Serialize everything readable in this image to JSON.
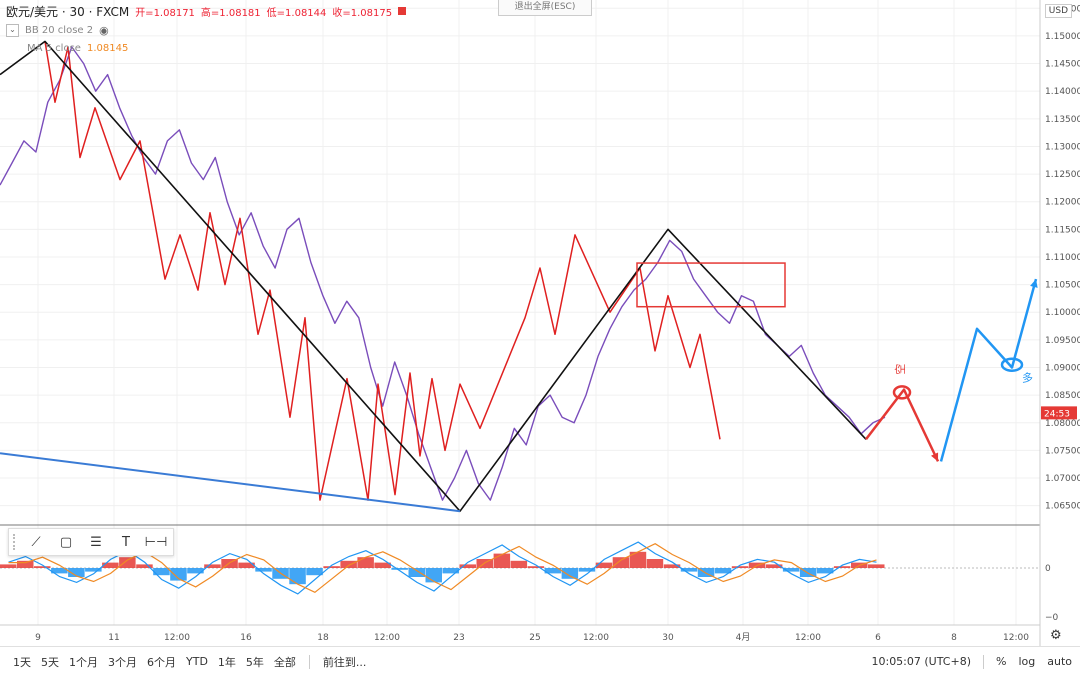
{
  "header": {
    "symbol": "欧元/美元 · 30 · FXCM",
    "open": "开=1.08171",
    "high": "高=1.08181",
    "low": "低=1.08144",
    "close": "收=1.08175",
    "indicator1": "BB 20 close 2",
    "indicator2": "MA 5 close",
    "indicator2_value": "1.08145",
    "exit_fullscreen": "退出全屏(ESC)",
    "currency": "USD"
  },
  "bottom": {
    "timeframes": [
      "1天",
      "5天",
      "1个月",
      "3个月",
      "6个月",
      "YTD",
      "1年",
      "5年",
      "全部"
    ],
    "goto": "前往到...",
    "clock": "10:05:07 (UTC+8)",
    "percent": "%",
    "log": "log",
    "auto": "auto"
  },
  "price_axis": {
    "ticks": [
      "1.15500",
      "1.15000",
      "1.14500",
      "1.14000",
      "1.13500",
      "1.13000",
      "1.12500",
      "1.12000",
      "1.11500",
      "1.11000",
      "1.10500",
      "1.10000",
      "1.09500",
      "1.09000",
      "1.08500",
      "1.08000",
      "1.07500",
      "1.07000",
      "1.06500"
    ],
    "current_tag": "24:53",
    "current_color": "#e53935"
  },
  "osc_axis": {
    "ticks": [
      "0",
      "−0"
    ]
  },
  "time_axis": {
    "ticks": [
      "9",
      "11",
      "12:00",
      "16",
      "18",
      "12:00",
      "23",
      "25",
      "12:00",
      "30",
      "4月",
      "12:00",
      "6",
      "8",
      "12:00"
    ]
  },
  "annotations": {
    "short_label": "空",
    "long_label": "多",
    "short_color": "#e53935",
    "long_color": "#2196f3"
  },
  "chart_data": {
    "type": "line",
    "title": "",
    "ylabel": "",
    "ylim": [
      1.0615,
      1.1565
    ],
    "y_ticks": [
      1.155,
      1.15,
      1.145,
      1.14,
      1.135,
      1.13,
      1.125,
      1.12,
      1.115,
      1.11,
      1.105,
      1.1,
      1.095,
      1.09,
      1.085,
      1.08,
      1.075,
      1.07,
      1.065
    ],
    "series": [
      {
        "kind": "price_path",
        "color": "#7a4dbb",
        "values": [
          1.123,
          1.127,
          1.131,
          1.129,
          1.138,
          1.142,
          1.148,
          1.145,
          1.14,
          1.143,
          1.137,
          1.132,
          1.128,
          1.125,
          1.131,
          1.133,
          1.127,
          1.124,
          1.128,
          1.12,
          1.114,
          1.118,
          1.112,
          1.108,
          1.115,
          1.117,
          1.109,
          1.103,
          1.098,
          1.102,
          1.099,
          1.09,
          1.083,
          1.091,
          1.085,
          1.078,
          1.072,
          1.066,
          1.07,
          1.075,
          1.069,
          1.066,
          1.072,
          1.079,
          1.076,
          1.083,
          1.085,
          1.081,
          1.08,
          1.085,
          1.092,
          1.097,
          1.101,
          1.104,
          1.106,
          1.109,
          1.113,
          1.111,
          1.106,
          1.103,
          1.1,
          1.098,
          1.103,
          1.102,
          1.096,
          1.094,
          1.092,
          1.094,
          1.089,
          1.085,
          1.083,
          1.081,
          1.078,
          1.08,
          1.081
        ]
      },
      {
        "kind": "zigzag_small",
        "color": "#e02020",
        "values": [
          1.149,
          1.138,
          1.148,
          1.128,
          1.137,
          1.124,
          1.131,
          1.106,
          1.114,
          1.104,
          1.118,
          1.105,
          1.117,
          1.096,
          1.104,
          1.081,
          1.099,
          1.066,
          1.088,
          1.066,
          1.087,
          1.067,
          1.089,
          1.074,
          1.088,
          1.075,
          1.087,
          1.079,
          1.099,
          1.108,
          1.096,
          1.114,
          1.1,
          1.108,
          1.093,
          1.103,
          1.09,
          1.096,
          1.077
        ]
      },
      {
        "kind": "zigzag_major",
        "color": "#111111",
        "values": [
          1.143,
          1.149,
          1.064,
          1.115,
          1.077
        ]
      },
      {
        "kind": "trendline",
        "color": "#3a7bd5",
        "values": [
          1.0745,
          1.064
        ]
      },
      {
        "kind": "projection_short",
        "color": "#e53935",
        "values": [
          1.077,
          1.086,
          1.073
        ]
      },
      {
        "kind": "projection_long",
        "color": "#2196f3",
        "values": [
          1.073,
          1.097,
          1.09,
          1.106
        ]
      }
    ],
    "rectangle": {
      "y_top": 1.1089,
      "y_bottom": 1.101,
      "color": "#e53935"
    },
    "oscillator": {
      "zero_label": "0",
      "histogram": [
        0.2,
        0.4,
        0.1,
        -0.3,
        -0.5,
        -0.2,
        0.3,
        0.6,
        0.2,
        -0.4,
        -0.7,
        -0.3,
        0.2,
        0.5,
        0.3,
        -0.2,
        -0.6,
        -0.9,
        -0.4,
        0.1,
        0.4,
        0.6,
        0.3,
        -0.1,
        -0.5,
        -0.8,
        -0.3,
        0.2,
        0.5,
        0.8,
        0.4,
        0.1,
        -0.3,
        -0.6,
        -0.2,
        0.3,
        0.6,
        0.9,
        0.5,
        0.2,
        -0.2,
        -0.5,
        -0.3,
        0.1,
        0.3,
        0.2,
        -0.2,
        -0.5,
        -0.3,
        0.1,
        0.3,
        0.2
      ]
    }
  }
}
